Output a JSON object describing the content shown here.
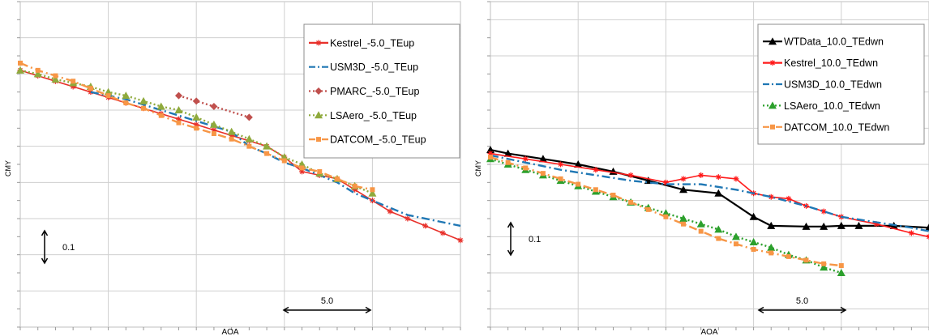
{
  "chart_data": [
    {
      "type": "line",
      "xlabel": "AOA",
      "ylabel": "CMY",
      "xlim": [
        -10,
        15
      ],
      "ylim": [
        -0.8,
        0.1
      ],
      "grid": true,
      "legend_placement": "top-right",
      "annotations": [
        {
          "kind": "scale-bar-vertical",
          "label": "0.1"
        },
        {
          "kind": "scale-bar-horizontal",
          "label": "5.0"
        }
      ],
      "series": [
        {
          "name": "Kestrel_-5.0_TEup",
          "color": "#e8302a",
          "style": "solid",
          "marker": "star",
          "x": [
            -10,
            -9,
            -8,
            -7,
            -6,
            -5,
            -4,
            -3,
            -2,
            -1,
            0,
            1,
            2,
            3,
            4,
            5,
            6,
            7,
            8,
            9,
            10,
            11,
            12,
            13,
            14,
            15
          ],
          "y": [
            -0.09,
            -0.105,
            -0.12,
            -0.135,
            -0.15,
            -0.165,
            -0.18,
            -0.195,
            -0.21,
            -0.225,
            -0.24,
            -0.255,
            -0.27,
            -0.285,
            -0.3,
            -0.33,
            -0.37,
            -0.38,
            -0.39,
            -0.42,
            -0.45,
            -0.48,
            -0.5,
            -0.52,
            -0.54,
            -0.56
          ]
        },
        {
          "name": "USM3D_-5.0_TEup",
          "color": "#1f77b4",
          "style": "dash-dot",
          "marker": "none",
          "x": [
            -6,
            -4,
            -2,
            0,
            2,
            3,
            4,
            5,
            6,
            8,
            9,
            10,
            12,
            14,
            15
          ],
          "y": [
            -0.15,
            -0.17,
            -0.2,
            -0.23,
            -0.26,
            -0.3,
            -0.32,
            -0.345,
            -0.36,
            -0.4,
            -0.43,
            -0.45,
            -0.49,
            -0.51,
            -0.52
          ]
        },
        {
          "name": "PMARC_-5.0_TEup",
          "color": "#c0504d",
          "style": "dotted",
          "marker": "diamond",
          "x": [
            -1,
            0,
            1,
            3
          ],
          "y": [
            -0.16,
            -0.175,
            -0.19,
            -0.22
          ]
        },
        {
          "name": "LSAero_-5.0_TEup",
          "color": "#8faa3c",
          "style": "dotted",
          "marker": "triangle",
          "x": [
            -10,
            -9,
            -8,
            -7,
            -6,
            -5,
            -4,
            -3,
            -2,
            -1,
            0,
            1,
            2,
            3,
            4,
            5,
            6,
            7,
            8,
            9,
            10
          ],
          "y": [
            -0.09,
            -0.1,
            -0.115,
            -0.125,
            -0.135,
            -0.15,
            -0.16,
            -0.175,
            -0.19,
            -0.2,
            -0.22,
            -0.24,
            -0.26,
            -0.28,
            -0.3,
            -0.33,
            -0.35,
            -0.375,
            -0.39,
            -0.41,
            -0.43
          ]
        },
        {
          "name": "DATCOM_-5.0_TEup",
          "color": "#f79646",
          "style": "dash-dot",
          "marker": "square",
          "x": [
            -10,
            -9,
            -8,
            -7,
            -6,
            -5,
            -4,
            -3,
            -2,
            -1,
            0,
            1,
            2,
            3,
            4,
            5,
            6,
            7,
            8,
            9,
            10
          ],
          "y": [
            -0.07,
            -0.09,
            -0.105,
            -0.12,
            -0.14,
            -0.16,
            -0.18,
            -0.195,
            -0.215,
            -0.235,
            -0.25,
            -0.265,
            -0.28,
            -0.3,
            -0.32,
            -0.34,
            -0.36,
            -0.37,
            -0.39,
            -0.41,
            -0.42
          ]
        }
      ]
    },
    {
      "type": "line",
      "xlabel": "AOA",
      "ylabel": "CMY",
      "xlim": [
        -10,
        15
      ],
      "ylim": [
        -0.85,
        0.05
      ],
      "grid": true,
      "legend_placement": "top-right",
      "annotations": [
        {
          "kind": "scale-bar-vertical",
          "label": "0.1"
        },
        {
          "kind": "scale-bar-horizontal",
          "label": "5.0"
        }
      ],
      "series": [
        {
          "name": "WTData_10.0_TEdwn",
          "color": "#000000",
          "style": "solid",
          "marker": "triangle",
          "x": [
            -10,
            -9,
            -7,
            -5,
            -3,
            -1,
            1,
            3,
            5,
            6,
            8,
            9,
            10,
            11,
            13,
            15
          ],
          "y": [
            -0.36,
            -0.37,
            -0.385,
            -0.4,
            -0.42,
            -0.445,
            -0.47,
            -0.48,
            -0.545,
            -0.57,
            -0.572,
            -0.572,
            -0.57,
            -0.57,
            -0.57,
            -0.575
          ]
        },
        {
          "name": "Kestrel_10.0_TEdwn",
          "color": "#ff1a1a",
          "style": "solid",
          "marker": "star",
          "x": [
            -10,
            -8,
            -6,
            -4,
            -2,
            0,
            1,
            2,
            3,
            4,
            5,
            6,
            7,
            8,
            9,
            10,
            12,
            14,
            15
          ],
          "y": [
            -0.37,
            -0.385,
            -0.4,
            -0.415,
            -0.43,
            -0.45,
            -0.44,
            -0.43,
            -0.435,
            -0.44,
            -0.48,
            -0.49,
            -0.495,
            -0.515,
            -0.53,
            -0.545,
            -0.565,
            -0.59,
            -0.6
          ]
        },
        {
          "name": "USM3D_10.0_TEdwn",
          "color": "#1f77b4",
          "style": "dash-dot",
          "marker": "none",
          "x": [
            -10,
            -6,
            -4,
            -2,
            0,
            2,
            4,
            6,
            8,
            10,
            12,
            14,
            15
          ],
          "y": [
            -0.375,
            -0.415,
            -0.43,
            -0.445,
            -0.455,
            -0.455,
            -0.47,
            -0.49,
            -0.515,
            -0.545,
            -0.56,
            -0.575,
            -0.585
          ]
        },
        {
          "name": "LSAero_10.0_TEdwn",
          "color": "#2ca02c",
          "style": "dotted",
          "marker": "triangle",
          "x": [
            -10,
            -9,
            -8,
            -7,
            -6,
            -5,
            -4,
            -3,
            -2,
            -1,
            0,
            1,
            2,
            3,
            4,
            5,
            6,
            7,
            8,
            9,
            10
          ],
          "y": [
            -0.385,
            -0.4,
            -0.415,
            -0.43,
            -0.445,
            -0.46,
            -0.475,
            -0.49,
            -0.505,
            -0.52,
            -0.535,
            -0.55,
            -0.565,
            -0.58,
            -0.6,
            -0.615,
            -0.63,
            -0.65,
            -0.665,
            -0.685,
            -0.7
          ]
        },
        {
          "name": "DATCOM_10.0_TEdwn",
          "color": "#f79646",
          "style": "dash-dot",
          "marker": "square",
          "x": [
            -10,
            -9,
            -8,
            -7,
            -6,
            -5,
            -4,
            -3,
            -2,
            -1,
            0,
            1,
            2,
            3,
            4,
            5,
            6,
            7,
            8,
            9,
            10
          ],
          "y": [
            -0.38,
            -0.395,
            -0.41,
            -0.425,
            -0.44,
            -0.455,
            -0.47,
            -0.485,
            -0.505,
            -0.525,
            -0.545,
            -0.565,
            -0.585,
            -0.605,
            -0.62,
            -0.635,
            -0.645,
            -0.655,
            -0.665,
            -0.675,
            -0.68
          ]
        }
      ]
    }
  ]
}
